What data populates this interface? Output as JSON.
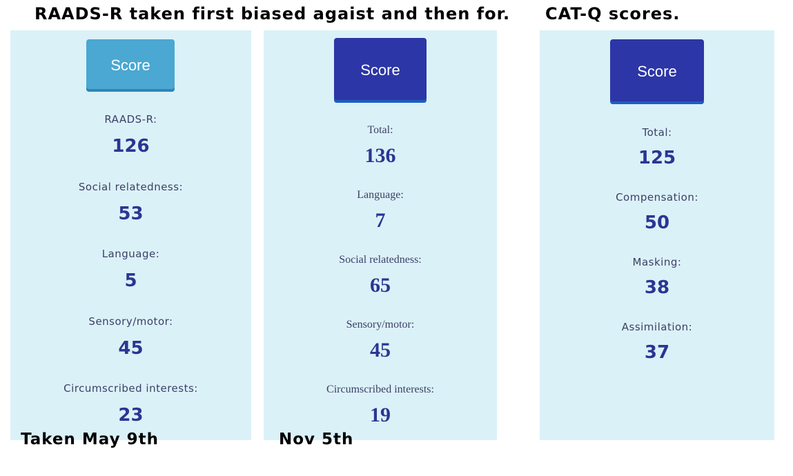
{
  "captions": {
    "raads_heading": "RAADS-R taken first biased agaist and then for.",
    "catq_heading": "CAT-Q scores.",
    "left_date": "Taken May 9th",
    "middle_date": "Nov 5th"
  },
  "panels": [
    {
      "button_label": "Score",
      "rows": [
        {
          "label": "RAADS-R:",
          "value": "126"
        },
        {
          "label": "Social relatedness:",
          "value": "53"
        },
        {
          "label": "Language:",
          "value": "5"
        },
        {
          "label": "Sensory/motor:",
          "value": "45"
        },
        {
          "label": "Circumscribed interests:",
          "value": "23"
        }
      ]
    },
    {
      "button_label": "Score",
      "rows": [
        {
          "label": "Total:",
          "value": "136"
        },
        {
          "label": "Language:",
          "value": "7"
        },
        {
          "label": "Social relatedness:",
          "value": "65"
        },
        {
          "label": "Sensory/motor:",
          "value": "45"
        },
        {
          "label": "Circumscribed interests:",
          "value": "19"
        }
      ]
    },
    {
      "button_label": "Score",
      "rows": [
        {
          "label": "Total:",
          "value": "125"
        },
        {
          "label": "Compensation:",
          "value": "50"
        },
        {
          "label": "Masking:",
          "value": "38"
        },
        {
          "label": "Assimilation:",
          "value": "37"
        }
      ]
    }
  ],
  "colors": {
    "panel_bg": "#dbf1f8",
    "button_light": "#4aa8d2",
    "button_dark": "#2c36a6",
    "value_text": "#2c3593"
  }
}
